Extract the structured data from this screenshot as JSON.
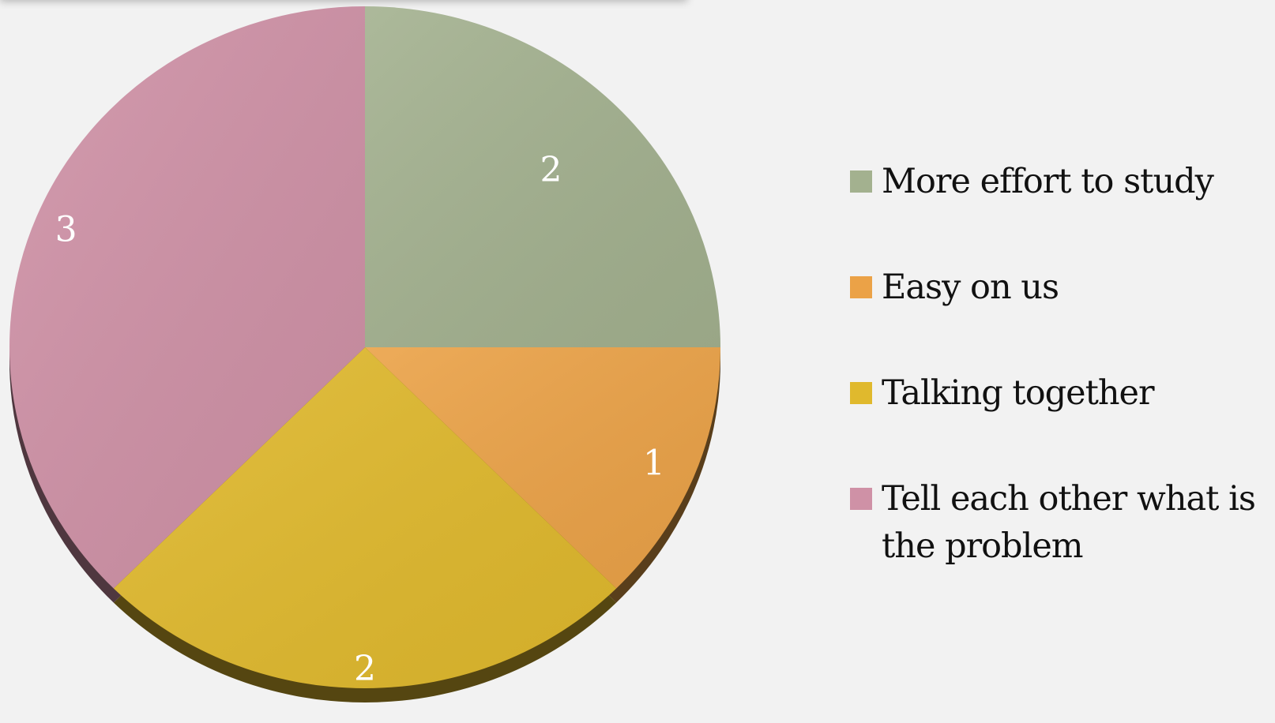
{
  "chart_data": {
    "type": "pie",
    "title": "",
    "categories": [
      "More effort to study",
      "Easy on us",
      "Talking together",
      "Tell each other what is the problem"
    ],
    "values": [
      2,
      1,
      2,
      3
    ],
    "data_labels": [
      "2",
      "1",
      "2",
      "3"
    ],
    "colors": [
      "#a3b18f",
      "#eba247",
      "#e0b92d",
      "#cf91a6"
    ],
    "start_angle": "12 o'clock, clockwise",
    "style": "3d-tilted",
    "legend": {
      "placement": "right"
    }
  }
}
